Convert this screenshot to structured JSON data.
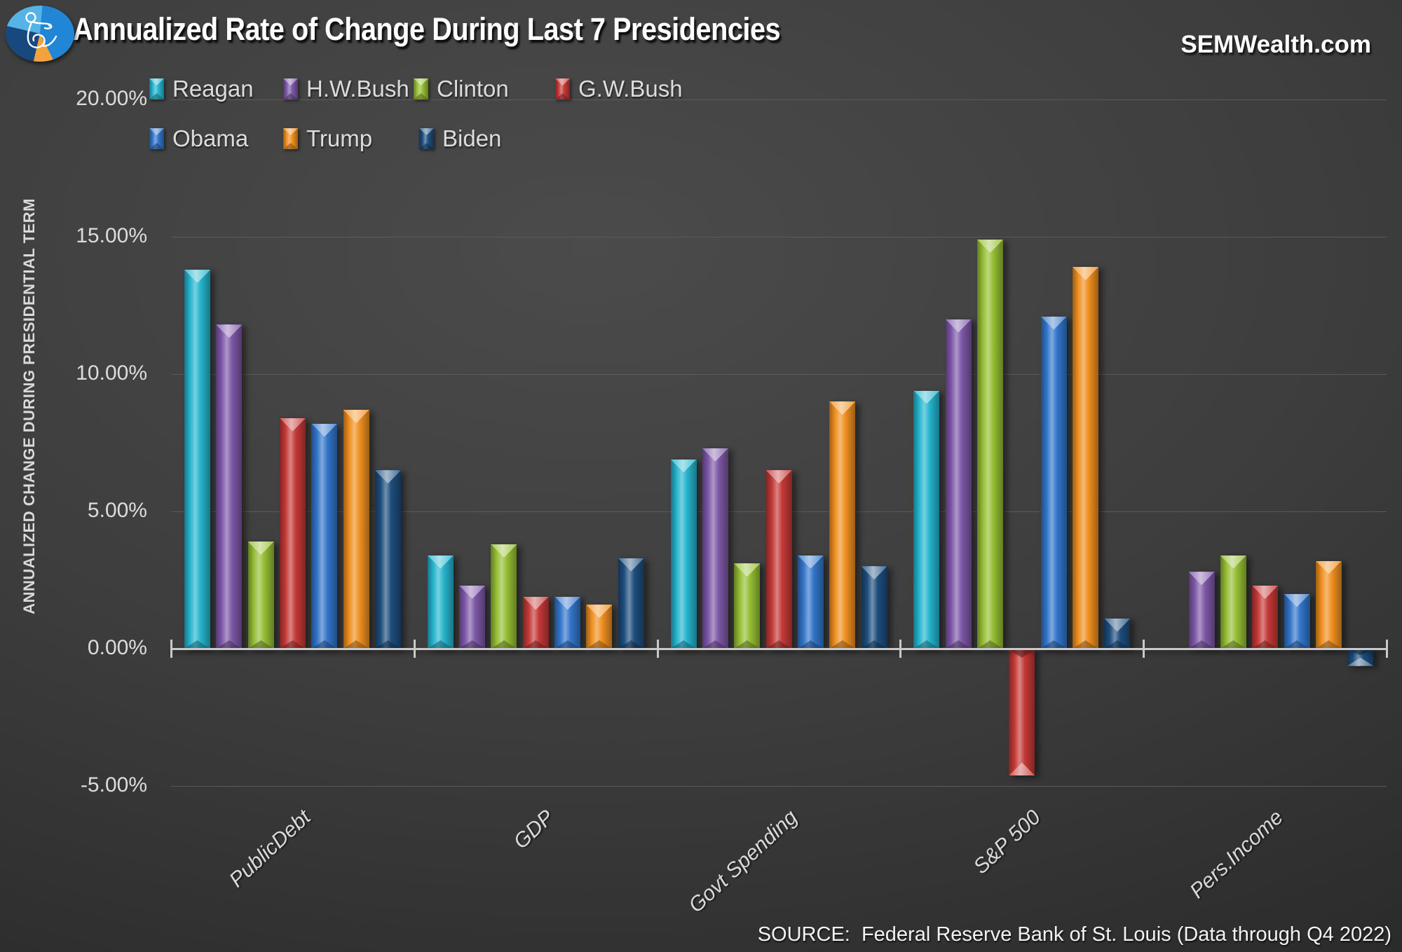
{
  "header": {
    "title": "Annualized Rate of Change During Last 7 Presidencies",
    "site": "SEMWealth.com"
  },
  "y_axis": {
    "title": "ANNUALIZED CHANGE DURING PRESIDENTIAL TERM",
    "ticks": [
      {
        "label": "20.00%",
        "value": 20
      },
      {
        "label": "15.00%",
        "value": 15
      },
      {
        "label": "10.00%",
        "value": 10
      },
      {
        "label": "5.00%",
        "value": 5
      },
      {
        "label": "0.00%",
        "value": 0
      },
      {
        "label": "-5.00%",
        "value": -5
      }
    ]
  },
  "source": "SOURCE:  Federal Reserve Bank of St. Louis (Data through Q4 2022)",
  "chart_data": {
    "type": "bar",
    "title": "Annualized Rate of Change During Last 7 Presidencies",
    "xlabel": "",
    "ylabel": "ANNUALIZED CHANGE DURING PRESIDENTIAL TERM",
    "ylim": [
      -5,
      20
    ],
    "ytick_step": 5,
    "grid": true,
    "legend_position": "top-left",
    "value_unit": "percent",
    "categories": [
      "PublicDebt",
      "GDP",
      "Govt Spending",
      "S&P 500",
      "Pers.Income"
    ],
    "series": [
      {
        "name": "Reagan",
        "color": "#25b4cd",
        "values": [
          13.8,
          3.4,
          6.9,
          9.4,
          null
        ]
      },
      {
        "name": "H.W.Bush",
        "color": "#7d57a7",
        "values": [
          11.8,
          2.3,
          7.3,
          12.0,
          2.8
        ]
      },
      {
        "name": "Clinton",
        "color": "#95bd33",
        "values": [
          3.9,
          3.8,
          3.1,
          14.9,
          3.4
        ]
      },
      {
        "name": "G.W.Bush",
        "color": "#c33836",
        "values": [
          8.4,
          1.9,
          6.5,
          -4.6,
          2.3
        ]
      },
      {
        "name": "Obama",
        "color": "#3274c9",
        "values": [
          8.2,
          1.9,
          3.4,
          12.1,
          2.0
        ]
      },
      {
        "name": "Trump",
        "color": "#ef8f1f",
        "values": [
          8.7,
          1.6,
          9.0,
          13.9,
          3.2
        ]
      },
      {
        "name": "Biden",
        "color": "#1d4d7c",
        "values": [
          6.5,
          3.3,
          3.0,
          1.1,
          -0.6
        ]
      }
    ]
  }
}
